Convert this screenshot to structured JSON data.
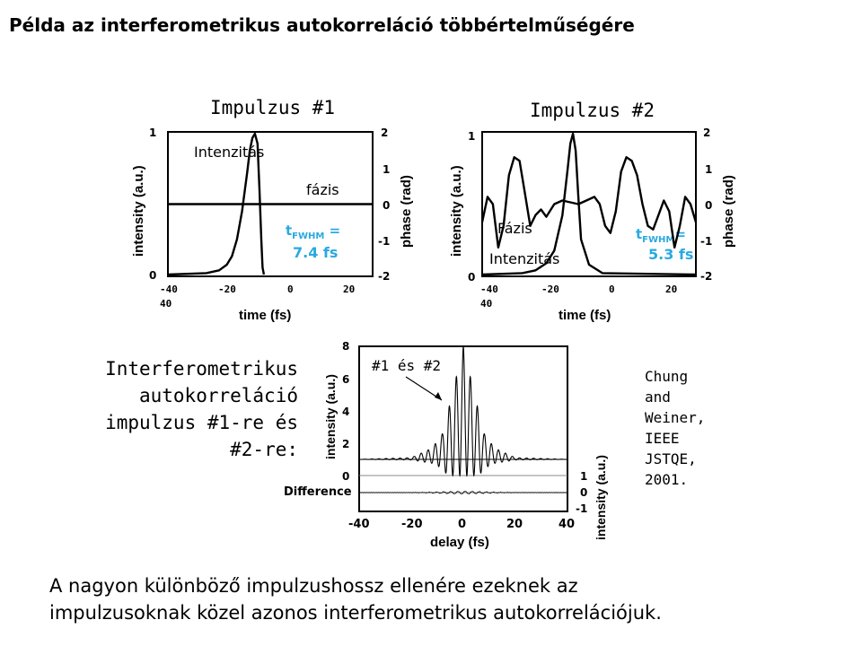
{
  "slide_title": "Példa az interferometrikus autokorreláció többértelműségére",
  "side_label": "Interferometrikus autokorreláció impulzus #1-re és #2-re:",
  "citation": "Chung\nand\nWeiner,\nIEEE\nJSTQE,\n2001.",
  "footer": "A nagyon különböző impulzushossz ellenére ezeknek az\nimpulzusoknak közel azonos interferometrikus autokorrelációjuk.",
  "chart_data": [
    {
      "id": "pulse1",
      "type": "line",
      "title": "Impulzus #1",
      "xlabel": "time (fs)",
      "ylabel_left": "intensity (a.u.)",
      "ylabel_right": "phase (rad)",
      "xlim": [
        -40,
        40
      ],
      "ylim_left": [
        0,
        1
      ],
      "ylim_right": [
        -2,
        2
      ],
      "x_tick_labels": [
        "-40",
        "-20",
        "0",
        "20",
        "40"
      ],
      "y_left_ticks": [
        "0",
        "1"
      ],
      "y_right_ticks": [
        "2",
        "1",
        "0",
        "-1",
        "-2"
      ],
      "intensity_label": "Intenzitás",
      "phase_label": "fázis",
      "fwhm_label": "t",
      "fwhm_sub": "FWHM",
      "fwhm_eq": " =",
      "fwhm_value": "7.4 fs",
      "series": [
        {
          "role": "intensity",
          "axis": "left",
          "x": [
            -40,
            -25,
            -20,
            -17,
            -15,
            -13,
            -11,
            -9,
            -8,
            -7,
            -6,
            -5,
            -4.2,
            -3.5,
            -3,
            -2.5
          ],
          "y": [
            0.0,
            0.01,
            0.03,
            0.07,
            0.13,
            0.25,
            0.45,
            0.73,
            0.88,
            0.97,
            1.0,
            0.93,
            0.6,
            0.25,
            0.05,
            0.0
          ]
        },
        {
          "role": "phase",
          "axis": "right",
          "x": [
            -40,
            40
          ],
          "y": [
            0.0,
            0.0
          ]
        }
      ]
    },
    {
      "id": "pulse2",
      "type": "line",
      "title": "Impulzus #2",
      "xlabel": "time (fs)",
      "ylabel_left": "intensity (a.u.)",
      "ylabel_right": "phase (rad)",
      "xlim": [
        -40,
        40
      ],
      "ylim_left": [
        0,
        1
      ],
      "ylim_right": [
        -2,
        2
      ],
      "x_tick_labels": [
        "-40",
        "-20",
        "0",
        "20",
        "40"
      ],
      "y_left_ticks": [
        "0",
        "1"
      ],
      "y_right_ticks": [
        "2",
        "1",
        "0",
        "-1",
        "-2"
      ],
      "intensity_label": "Intenzitás",
      "phase_label": "Fázis",
      "fwhm_label": "t",
      "fwhm_sub": "FWHM",
      "fwhm_eq": "=",
      "fwhm_value": "5.3 fs",
      "series": [
        {
          "role": "intensity",
          "axis": "left",
          "x": [
            -40,
            -25,
            -20,
            -16,
            -13,
            -10,
            -8,
            -7,
            -6,
            -5,
            -4,
            -3,
            0,
            5,
            40
          ],
          "y": [
            0.0,
            0.01,
            0.03,
            0.08,
            0.17,
            0.42,
            0.75,
            0.93,
            1.0,
            0.88,
            0.55,
            0.25,
            0.07,
            0.01,
            0.0
          ]
        },
        {
          "role": "phase",
          "axis": "right",
          "x": [
            -40,
            -38,
            -36,
            -34,
            -32,
            -30,
            -28,
            -26,
            -24,
            -22,
            -20,
            -18,
            -16,
            -13,
            -10,
            -7,
            -4,
            -1,
            2,
            4,
            6,
            8,
            10,
            12,
            14,
            16,
            18,
            20,
            22,
            24,
            26,
            28,
            30,
            32,
            34,
            36,
            38,
            40
          ],
          "y": [
            -0.5,
            0.2,
            0.0,
            -1.2,
            -0.6,
            0.8,
            1.3,
            1.2,
            0.3,
            -0.6,
            -0.3,
            -0.15,
            -0.35,
            0.0,
            0.1,
            0.05,
            0.0,
            0.1,
            0.2,
            0.0,
            -0.6,
            -0.8,
            -0.2,
            0.9,
            1.3,
            1.2,
            0.8,
            0.0,
            -0.6,
            -0.7,
            -0.3,
            0.1,
            -0.2,
            -1.2,
            -0.6,
            0.2,
            0.0,
            -0.5
          ]
        }
      ]
    },
    {
      "id": "autocorrelation",
      "type": "line",
      "annotation": "#1 és #2",
      "xlabel": "delay (fs)",
      "ylabel_left": "intensity (a.u.)",
      "ylabel_right": "intensity (a.u.)",
      "xlim": [
        -40,
        40
      ],
      "ylim": [
        0,
        8
      ],
      "x_tick_labels": [
        "-40",
        "-20",
        "0",
        "20",
        "40"
      ],
      "y_left_ticks": [
        "8",
        "6",
        "4",
        "2",
        "0"
      ],
      "difference_label": "Difference",
      "difference_ticks": [
        "1",
        "0",
        "-1"
      ],
      "background_level": 1,
      "fringe_period_fs": 2.7,
      "envelope_half_width_fs": 8,
      "series": [
        {
          "name": "#1 és #2",
          "x": [
            -40,
            -20,
            -12,
            -8,
            -4,
            0,
            4,
            8,
            12,
            20,
            40
          ],
          "y_envelope_max": [
            1,
            1.1,
            1.7,
            2.6,
            5.2,
            8,
            5.2,
            2.6,
            1.7,
            1.1,
            1
          ]
        },
        {
          "name": "Difference",
          "x": [
            -40,
            40
          ],
          "y": [
            0,
            0
          ]
        }
      ]
    }
  ]
}
